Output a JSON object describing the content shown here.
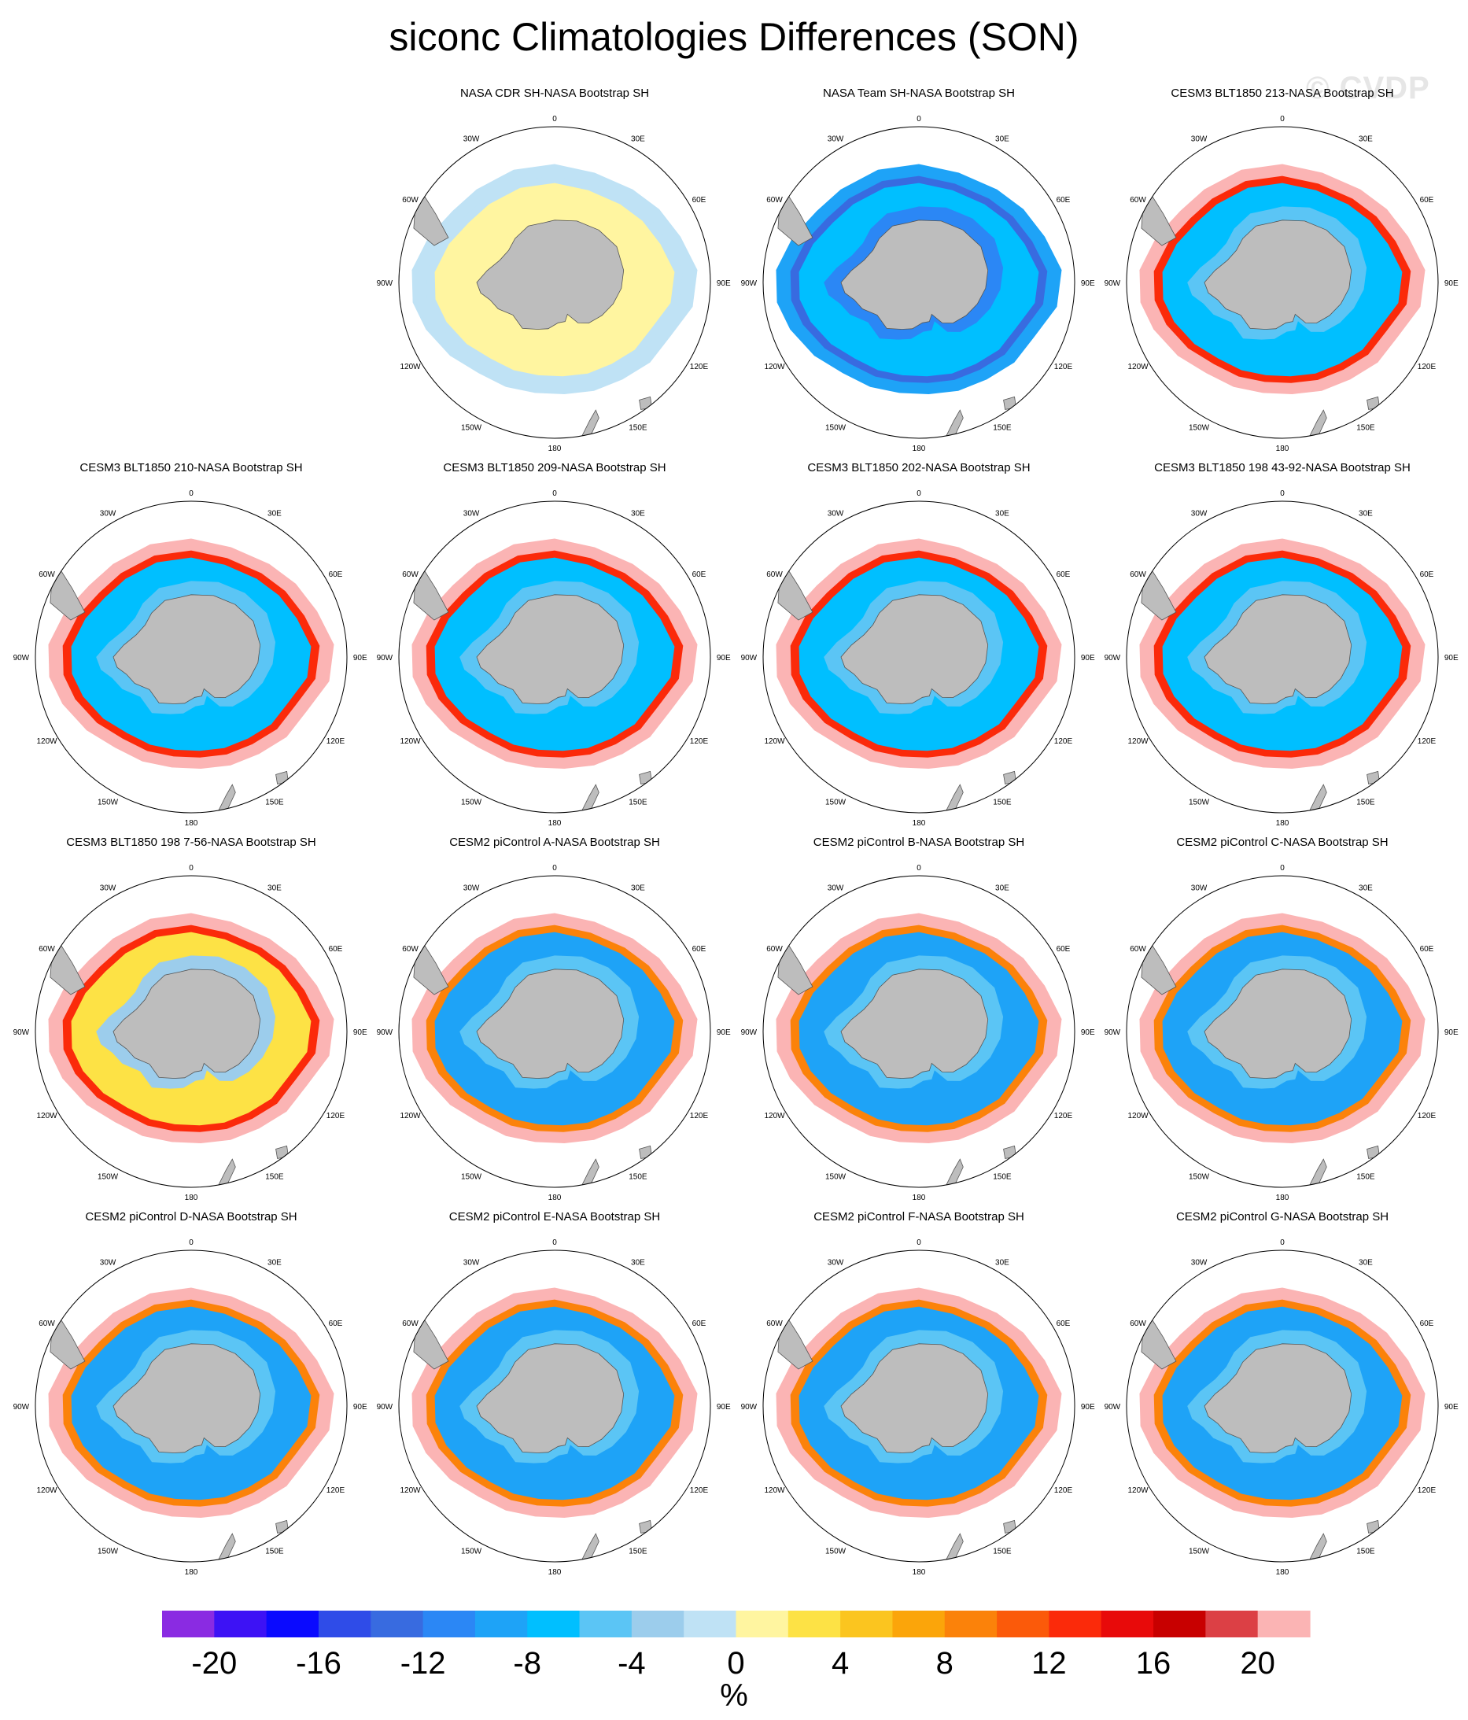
{
  "title": "siconc Climatologies Differences (SON)",
  "watermark": "© CVDP",
  "map_labels": {
    "top": "0",
    "bottom": "180",
    "ring": [
      "30E",
      "60E",
      "90E",
      "120E",
      "150E",
      "150W",
      "120W",
      "90W",
      "60W",
      "30W"
    ]
  },
  "panels": [
    {
      "title": "NASA CDR SH-NASA Bootstrap SH",
      "pattern": "cdr"
    },
    {
      "title": "NASA Team SH-NASA Bootstrap SH",
      "pattern": "team"
    },
    {
      "title": "CESM3 BLT1850 213-NASA Bootstrap SH",
      "pattern": "cesm3"
    },
    {
      "title": "CESM3 BLT1850 210-NASA Bootstrap SH",
      "pattern": "cesm3"
    },
    {
      "title": "CESM3 BLT1850 209-NASA Bootstrap SH",
      "pattern": "cesm3"
    },
    {
      "title": "CESM3 BLT1850 202-NASA Bootstrap SH",
      "pattern": "cesm3"
    },
    {
      "title": "CESM3 BLT1850 198 43-92-NASA Bootstrap SH",
      "pattern": "cesm3"
    },
    {
      "title": "CESM3 BLT1850 198 7-56-NASA Bootstrap SH",
      "pattern": "cesm3warm"
    },
    {
      "title": "CESM2 piControl A-NASA Bootstrap SH",
      "pattern": "cesm2"
    },
    {
      "title": "CESM2 piControl B-NASA Bootstrap SH",
      "pattern": "cesm2"
    },
    {
      "title": "CESM2 piControl C-NASA Bootstrap SH",
      "pattern": "cesm2"
    },
    {
      "title": "CESM2 piControl D-NASA Bootstrap SH",
      "pattern": "cesm2"
    },
    {
      "title": "CESM2 piControl E-NASA Bootstrap SH",
      "pattern": "cesm2"
    },
    {
      "title": "CESM2 piControl F-NASA Bootstrap SH",
      "pattern": "cesm2"
    },
    {
      "title": "CESM2 piControl G-NASA Bootstrap SH",
      "pattern": "cesm2"
    }
  ],
  "colorbar": {
    "unit": "%",
    "labels": [
      "-20",
      "-16",
      "-12",
      "-8",
      "-4",
      "0",
      "4",
      "8",
      "12",
      "16",
      "20"
    ],
    "colors": [
      "#8a2be2",
      "#3d12f5",
      "#0a0aff",
      "#2f4ce8",
      "#386be0",
      "#2b87f5",
      "#1ea3f7",
      "#00bfff",
      "#5bc5f5",
      "#9ccdec",
      "#bfe2f5",
      "#fff5a0",
      "#fde245",
      "#fbc51f",
      "#fba50a",
      "#fb820a",
      "#fb5a0a",
      "#fb2a0a",
      "#e80a0a",
      "#c80000",
      "#dc4045",
      "#fbb4b4"
    ]
  }
}
